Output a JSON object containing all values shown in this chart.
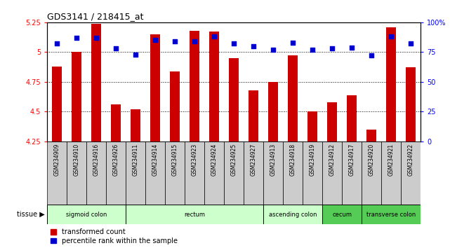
{
  "title": "GDS3141 / 218415_at",
  "samples": [
    "GSM234909",
    "GSM234910",
    "GSM234916",
    "GSM234926",
    "GSM234911",
    "GSM234914",
    "GSM234915",
    "GSM234923",
    "GSM234924",
    "GSM234925",
    "GSM234927",
    "GSM234913",
    "GSM234918",
    "GSM234919",
    "GSM234912",
    "GSM234917",
    "GSM234920",
    "GSM234921",
    "GSM234922"
  ],
  "transformed_count": [
    4.88,
    5.0,
    5.24,
    4.56,
    4.52,
    5.15,
    4.84,
    5.18,
    5.17,
    4.95,
    4.68,
    4.75,
    4.97,
    4.5,
    4.58,
    4.64,
    4.35,
    5.21,
    4.87
  ],
  "percentile_rank": [
    82,
    87,
    87,
    78,
    73,
    85,
    84,
    84,
    88,
    82,
    80,
    77,
    83,
    77,
    78,
    79,
    72,
    88,
    82
  ],
  "ylim_left": [
    4.25,
    5.25
  ],
  "ylim_right": [
    0,
    100
  ],
  "yticks_left": [
    4.25,
    4.5,
    4.75,
    5.0,
    5.25
  ],
  "ytick_labels_left": [
    "4.25",
    "4.5",
    "4.75",
    "5",
    "5.25"
  ],
  "yticks_right": [
    0,
    25,
    50,
    75,
    100
  ],
  "ytick_labels_right": [
    "0",
    "25",
    "50",
    "75",
    "100%"
  ],
  "hgrid_values": [
    5.0,
    4.75,
    4.5
  ],
  "groups": [
    {
      "label": "sigmoid colon",
      "start": 0,
      "end": 3,
      "color": "#ccffcc"
    },
    {
      "label": "rectum",
      "start": 4,
      "end": 10,
      "color": "#ccffcc"
    },
    {
      "label": "ascending colon",
      "start": 11,
      "end": 13,
      "color": "#ccffcc"
    },
    {
      "label": "cecum",
      "start": 14,
      "end": 15,
      "color": "#55cc55"
    },
    {
      "label": "transverse colon",
      "start": 16,
      "end": 18,
      "color": "#55cc55"
    }
  ],
  "bar_color": "#cc0000",
  "dot_color": "#0000cc",
  "bar_width": 0.5,
  "base_value": 4.25,
  "xlabel_bg": "#cccccc",
  "tissue_label": "tissue ▶"
}
